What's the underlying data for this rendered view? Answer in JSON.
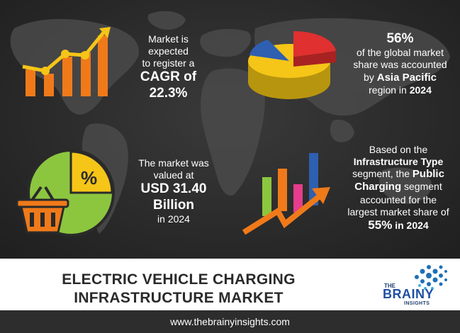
{
  "stats": {
    "cagr": {
      "line1": "Market is expected",
      "line2": "to register a",
      "label": "CAGR of",
      "value": "22.3%"
    },
    "region": {
      "percent": "56%",
      "line1": "of the global market",
      "line2": "share was accounted",
      "by": "by",
      "region": "Asia Pacific",
      "tail": "region in",
      "year": "2024"
    },
    "valuation": {
      "line1": "The market was",
      "line2": "valued at",
      "value_line1": "USD 31.40",
      "value_line2": "Billion",
      "year_text": "in 2024"
    },
    "segment": {
      "line1": "Based on the",
      "segment_type": "Infrastructure Type",
      "line3": "segment, the",
      "public": "Public",
      "charging": "Charging",
      "line4": "segment",
      "line5": "accounted for the",
      "line6": "largest market share of",
      "percent": "55%",
      "year_text": "in 2024"
    }
  },
  "banner": {
    "title_line1": "ELECTRIC VEHICLE CHARGING",
    "title_line2": "INFRASTRUCTURE MARKET",
    "brand_the": "THE",
    "brand_brainy": "BRAINY",
    "brand_insights": "INSIGHTS"
  },
  "footer": {
    "url": "www.thebrainyinsights.com"
  },
  "icons": {
    "growth_chart": "growth-bar-chart-icon",
    "pie_3d": "pie-chart-3d-icon",
    "basket_percent": "shopping-basket-percent-icon",
    "rising_bars": "rising-bars-arrow-icon"
  },
  "colors": {
    "orange": "#f07a1a",
    "yellow": "#f5c518",
    "green": "#8cc63f",
    "red": "#e03030",
    "blue": "#2f5fb0",
    "pink": "#e63c8c"
  }
}
